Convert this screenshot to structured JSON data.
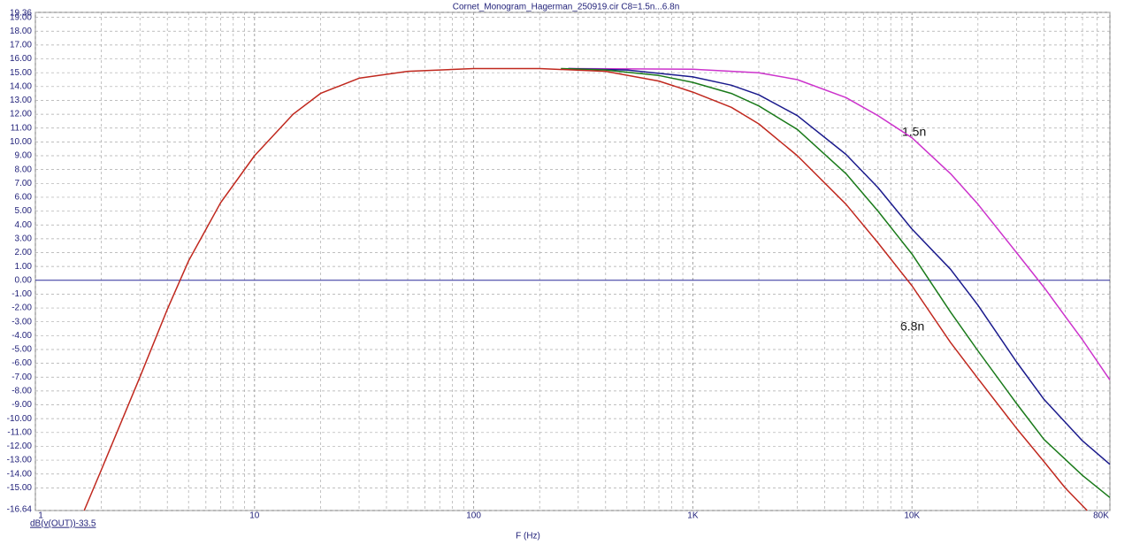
{
  "chart_data": {
    "type": "line",
    "title": "Cornet_Monogram_Hagerman_250919.cir C8=1.5n...6.8n",
    "x_label": "F (Hz)",
    "y_label": "dB(v(OUT))-33.5",
    "log_x": true,
    "grid": true,
    "xlim": [
      1,
      80000
    ],
    "xticks": [
      1,
      10,
      100,
      {
        "value": 1000,
        "label": "1K"
      },
      {
        "value": 10000,
        "label": "10K"
      },
      {
        "value": 80000,
        "label": "80K"
      }
    ],
    "xminorticks": [
      2,
      3,
      4,
      5,
      6,
      7,
      8,
      9,
      20,
      30,
      40,
      50,
      60,
      70,
      80,
      90,
      200,
      300,
      400,
      500,
      600,
      700,
      800,
      900,
      2000,
      3000,
      4000,
      5000,
      6000,
      7000,
      8000,
      9000,
      20000,
      30000,
      40000,
      50000,
      60000,
      70000
    ],
    "ylim": [
      -16.64,
      19.36
    ],
    "yticks": [
      {
        "value": -16.64,
        "label": "-16.64"
      },
      {
        "value": -15,
        "label": "-15.00"
      },
      {
        "value": -14,
        "label": "-14.00"
      },
      {
        "value": -13,
        "label": "-13.00"
      },
      {
        "value": -12,
        "label": "-12.00"
      },
      {
        "value": -11,
        "label": "-11.00"
      },
      {
        "value": -10,
        "label": "-10.00"
      },
      {
        "value": -9,
        "label": "-9.00"
      },
      {
        "value": -8,
        "label": "-8.00"
      },
      {
        "value": -7,
        "label": "-7.00"
      },
      {
        "value": -6,
        "label": "-6.00"
      },
      {
        "value": -5,
        "label": "-5.00"
      },
      {
        "value": -4,
        "label": "-4.00"
      },
      {
        "value": -3,
        "label": "-3.00"
      },
      {
        "value": -2,
        "label": "-2.00"
      },
      {
        "value": -1,
        "label": "-1.00"
      },
      {
        "value": 0,
        "label": "0.00"
      },
      {
        "value": 1,
        "label": "1.00"
      },
      {
        "value": 2,
        "label": "2.00"
      },
      {
        "value": 3,
        "label": "3.00"
      },
      {
        "value": 4,
        "label": "4.00"
      },
      {
        "value": 5,
        "label": "5.00"
      },
      {
        "value": 6,
        "label": "6.00"
      },
      {
        "value": 7,
        "label": "7.00"
      },
      {
        "value": 8,
        "label": "8.00"
      },
      {
        "value": 9,
        "label": "9.00"
      },
      {
        "value": 10,
        "label": "10.00"
      },
      {
        "value": 11,
        "label": "11.00"
      },
      {
        "value": 12,
        "label": "12.00"
      },
      {
        "value": 13,
        "label": "13.00"
      },
      {
        "value": 14,
        "label": "14.00"
      },
      {
        "value": 15,
        "label": "15.00"
      },
      {
        "value": 16,
        "label": "16.00"
      },
      {
        "value": 17,
        "label": "17.00"
      },
      {
        "value": 18,
        "label": "18.00"
      },
      {
        "value": 19,
        "label": "19.00"
      },
      {
        "value": 19.36,
        "label": "19.36"
      }
    ],
    "series": [
      {
        "color": "#cc33cc",
        "x": [
          270,
          1000,
          2000,
          3000,
          5000,
          7000,
          10000,
          15000,
          20000,
          30000,
          40000,
          50000,
          60000,
          80000
        ],
        "values": [
          15.3,
          15.25,
          15.0,
          14.5,
          13.2,
          11.9,
          10.3,
          7.7,
          5.5,
          2.0,
          -0.5,
          -2.6,
          -4.3,
          -7.2
        ]
      },
      {
        "color": "#1a1a8c",
        "x": [
          270,
          500,
          1000,
          1500,
          2000,
          3000,
          5000,
          7000,
          10000,
          15000,
          20000,
          30000,
          40000,
          60000,
          80000
        ],
        "values": [
          15.3,
          15.2,
          14.7,
          14.1,
          13.4,
          11.9,
          9.1,
          6.7,
          3.7,
          0.8,
          -1.8,
          -5.9,
          -8.6,
          -11.6,
          -13.3
        ]
      },
      {
        "color": "#1a7a1a",
        "x": [
          250,
          400,
          700,
          1000,
          1500,
          2000,
          3000,
          5000,
          7000,
          10000,
          15000,
          20000,
          30000,
          40000,
          60000,
          80000
        ],
        "values": [
          15.3,
          15.2,
          14.8,
          14.3,
          13.5,
          12.6,
          10.9,
          7.7,
          5.0,
          1.9,
          -2.3,
          -5.1,
          -8.9,
          -11.5,
          -14.1,
          -15.7
        ]
      },
      {
        "color": "#c0281e",
        "x": [
          1.67,
          2,
          3,
          4,
          5,
          7,
          10,
          15,
          20,
          30,
          50,
          100,
          200,
          400,
          700,
          1000,
          1500,
          2000,
          3000,
          5000,
          7000,
          10000,
          15000,
          20000,
          30000,
          40000,
          50000,
          63000
        ],
        "values": [
          -16.64,
          -13.7,
          -7.0,
          -2.1,
          1.4,
          5.6,
          9.0,
          12.0,
          13.5,
          14.6,
          15.1,
          15.3,
          15.3,
          15.1,
          14.4,
          13.6,
          12.5,
          11.3,
          9.0,
          5.5,
          2.7,
          -0.4,
          -4.5,
          -7.1,
          -10.7,
          -13.1,
          -15.0,
          -16.64
        ]
      }
    ],
    "annotations": [
      "1.5n",
      "6.8n"
    ]
  }
}
